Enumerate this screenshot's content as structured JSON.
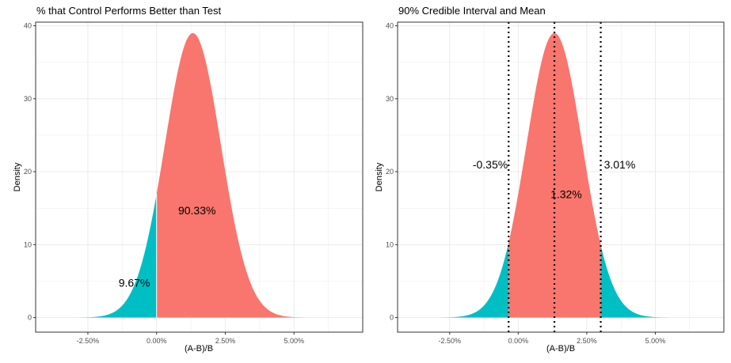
{
  "colors": {
    "test_better": "#F8766D",
    "control_better": "#00BFC4",
    "panel_border": "#333333",
    "grid": "#ebebeb"
  },
  "chart_data": [
    {
      "type": "area",
      "title": "% that Control Performs Better than Test",
      "xlabel": "(A-B)/B",
      "ylabel": "Density",
      "x_ticks": [
        "-2.50%",
        "0.00%",
        "2.50%",
        "5.00%"
      ],
      "y_ticks": [
        "0",
        "10",
        "20",
        "30",
        "40"
      ],
      "xlim": [
        -0.044,
        0.075
      ],
      "ylim": [
        -2,
        40.5
      ],
      "grid": true,
      "distribution": {
        "mean": 0.0132,
        "sd": 0.01022,
        "peak_density": 39
      },
      "split_at": 0,
      "annotations": [
        {
          "text": "90.33%",
          "x": 0.0147,
          "y": 14.7
        },
        {
          "text": "9.67%",
          "x": -0.0081,
          "y": 4.8
        }
      ]
    },
    {
      "type": "area",
      "title": "90% Credible Interval and Mean",
      "xlabel": "(A-B)/B",
      "ylabel": "Density",
      "x_ticks": [
        "-2.50%",
        "0.00%",
        "2.50%",
        "5.00%"
      ],
      "y_ticks": [
        "0",
        "10",
        "20",
        "30",
        "40"
      ],
      "xlim": [
        -0.044,
        0.075
      ],
      "ylim": [
        -2,
        40.5
      ],
      "grid": true,
      "distribution": {
        "mean": 0.0132,
        "sd": 0.01022,
        "peak_density": 39
      },
      "interval": [
        -0.0035,
        0.0301
      ],
      "vlines": [
        -0.0035,
        0.0132,
        0.0301
      ],
      "annotations": [
        {
          "text": "-0.35%",
          "x": -0.0102,
          "y": 21
        },
        {
          "text": "1.32%",
          "x": 0.0175,
          "y": 16.9
        },
        {
          "text": "3.01%",
          "x": 0.037,
          "y": 21
        }
      ]
    }
  ]
}
